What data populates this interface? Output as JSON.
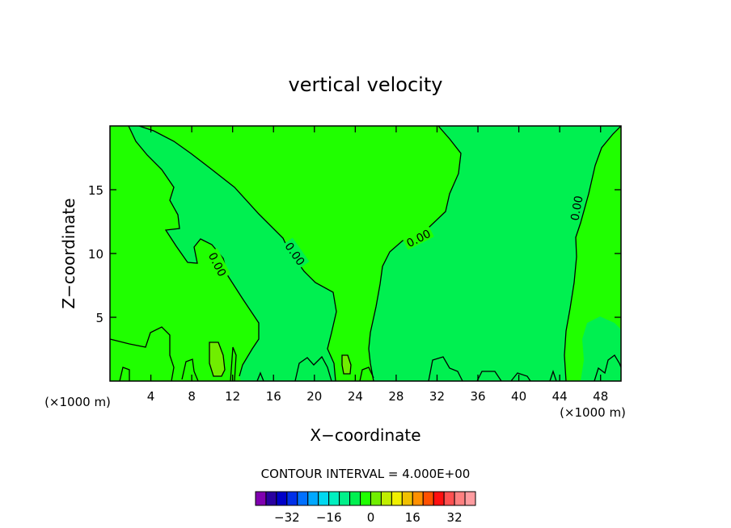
{
  "chart_data": {
    "type": "contour",
    "title": "vertical velocity",
    "xlabel": "X−coordinate",
    "ylabel": "Z−coordinate",
    "x_unit_left": "(×1000 m)",
    "x_unit_right": "(×1000 m)",
    "xlim": [
      0,
      50
    ],
    "ylim": [
      0,
      20
    ],
    "x_ticks": [
      4,
      8,
      12,
      16,
      20,
      24,
      28,
      32,
      36,
      40,
      44,
      48
    ],
    "y_ticks": [
      5,
      10,
      15
    ],
    "contour_labels": [
      "0.00",
      "0.00",
      "0.00",
      "0.00"
    ],
    "contour_interval_text": "CONTOUR INTERVAL = 4.000E+00",
    "colorbar": {
      "tick_labels": [
        "−32",
        "−16",
        "0",
        "16",
        "32"
      ],
      "tick_values": [
        -32,
        -16,
        0,
        16,
        32
      ],
      "min": -40,
      "max": 40,
      "step": 4,
      "colors": [
        "#8000b0",
        "#2a00a0",
        "#0000c8",
        "#0030e8",
        "#0070ff",
        "#00a8ff",
        "#00d8f0",
        "#00f0c0",
        "#00f08a",
        "#00f050",
        "#20ff00",
        "#70ee00",
        "#c0ee00",
        "#f0f000",
        "#f0c000",
        "#ff9000",
        "#ff5000",
        "#ff1010",
        "#ff5050",
        "#ff8080",
        "#ff9ca0"
      ]
    },
    "fill_colors": {
      "negative": "#00f050",
      "positive": "#20ff00",
      "strong_positive": "#70ee00"
    }
  }
}
